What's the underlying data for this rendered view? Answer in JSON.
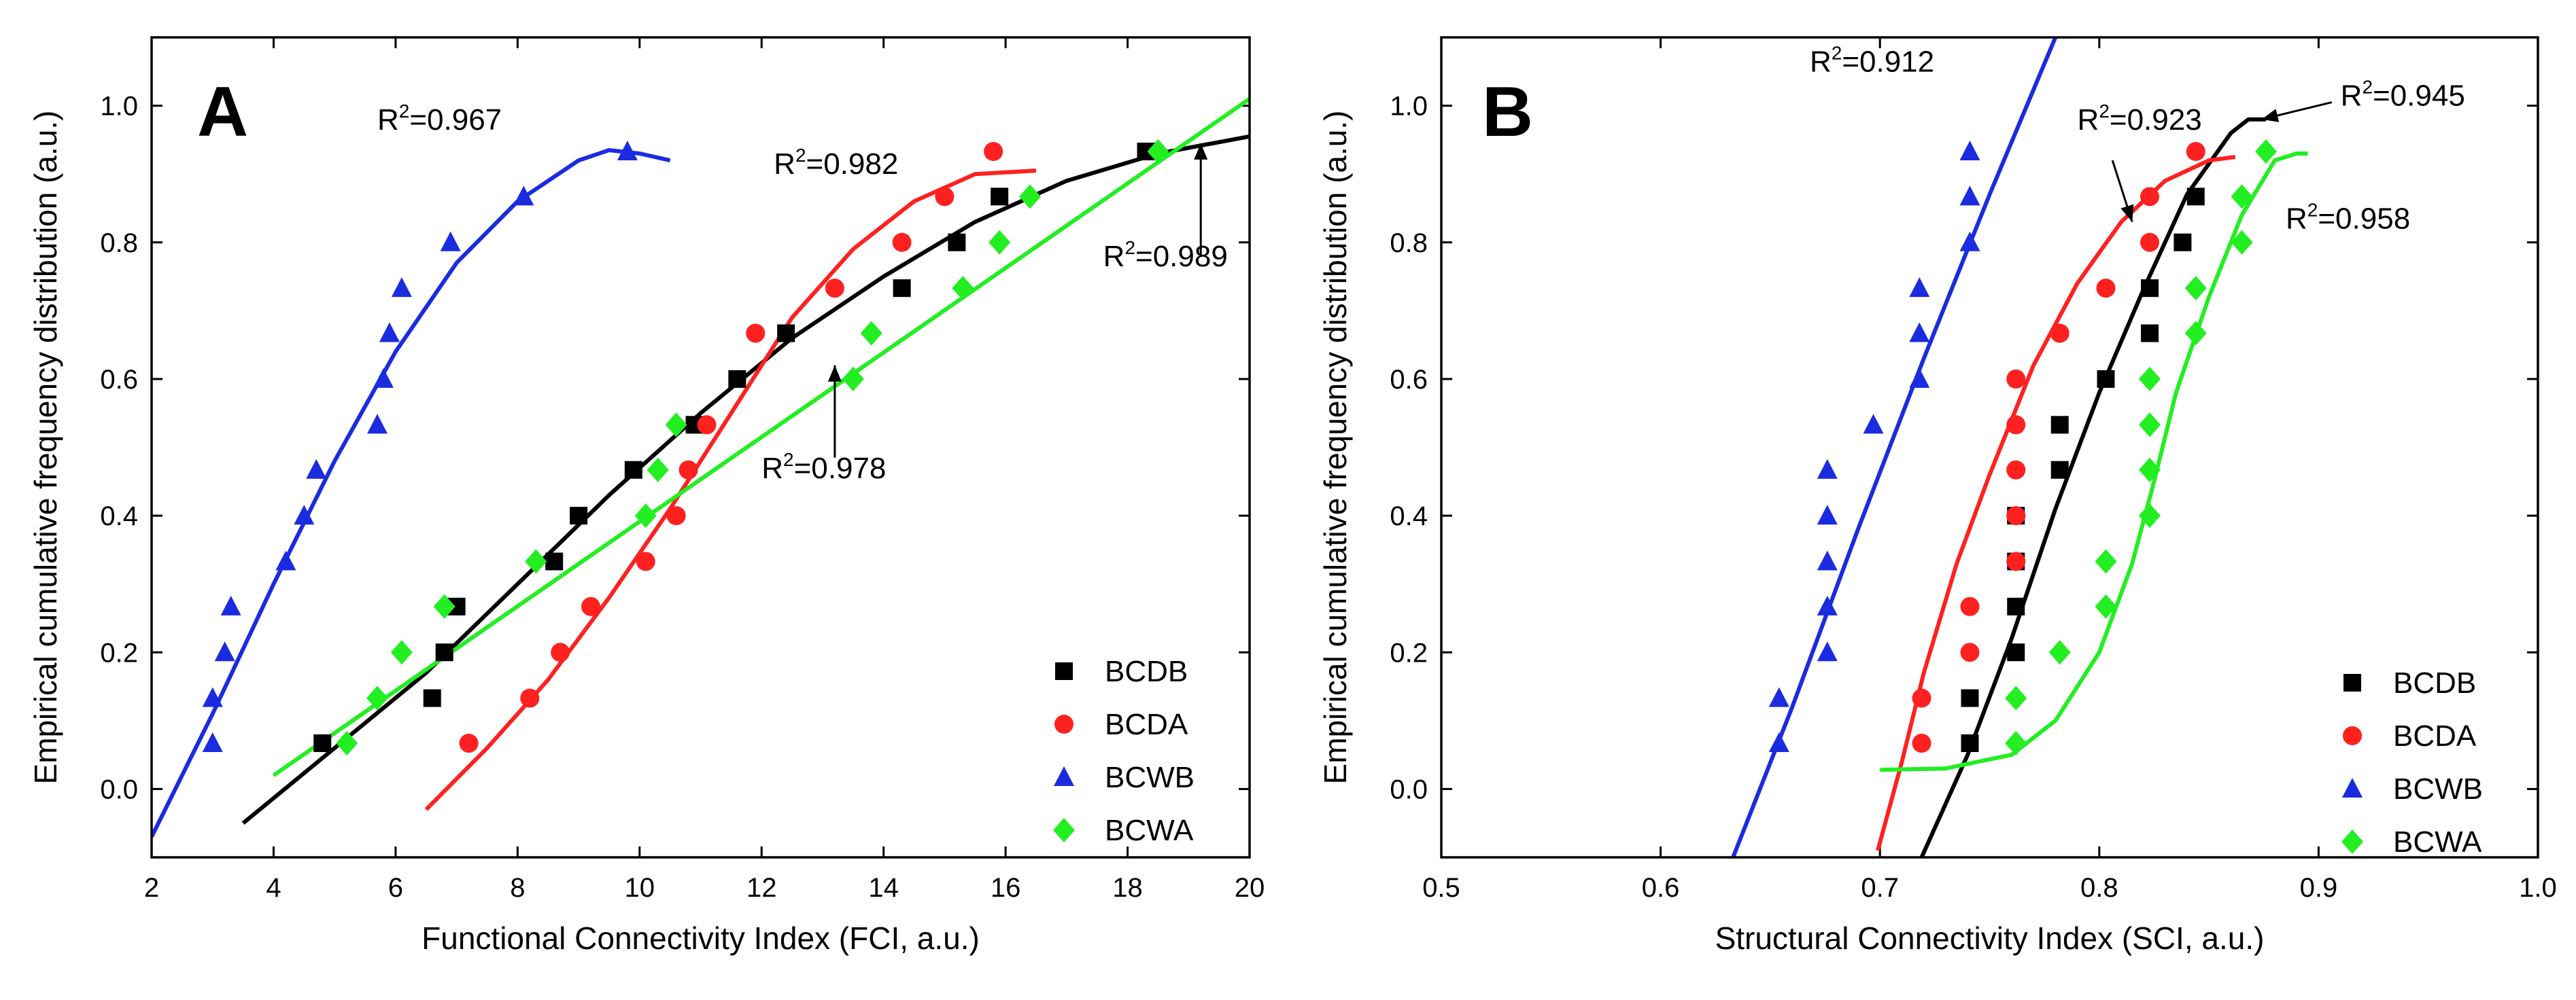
{
  "colors": {
    "BCDB": "#000000",
    "BCDA": "#ff2020",
    "BCWB": "#1b2be0",
    "BCWA": "#22ee22"
  },
  "chart_data": [
    {
      "panel": "A",
      "type": "scatter",
      "xlabel": "Functional Connectivity Index (FCI, a.u.)",
      "ylabel": "Empirical cumulative frequency distribution (a.u.)",
      "xlim": [
        2,
        20
      ],
      "ylim": [
        -0.1,
        1.1
      ],
      "xticks": [
        2,
        4,
        6,
        8,
        10,
        12,
        14,
        16,
        18,
        20
      ],
      "yticks": [
        0.0,
        0.2,
        0.4,
        0.6,
        0.8,
        1.0
      ],
      "legend_position": "bottom-right",
      "series": [
        {
          "name": "BCDB",
          "marker": "square",
          "points": [
            [
              4.8,
              0.067
            ],
            [
              6.6,
              0.133
            ],
            [
              6.8,
              0.2
            ],
            [
              7.0,
              0.267
            ],
            [
              8.6,
              0.333
            ],
            [
              9.0,
              0.4
            ],
            [
              9.9,
              0.467
            ],
            [
              10.9,
              0.533
            ],
            [
              11.6,
              0.6
            ],
            [
              12.4,
              0.667
            ],
            [
              14.3,
              0.733
            ],
            [
              15.2,
              0.8
            ],
            [
              15.9,
              0.867
            ],
            [
              18.3,
              0.933
            ]
          ],
          "fit": [
            [
              3.5,
              -0.05
            ],
            [
              5.0,
              0.06
            ],
            [
              6.5,
              0.17
            ],
            [
              8.0,
              0.3
            ],
            [
              9.5,
              0.43
            ],
            [
              11.0,
              0.55
            ],
            [
              12.5,
              0.66
            ],
            [
              14.0,
              0.75
            ],
            [
              15.5,
              0.83
            ],
            [
              17.0,
              0.89
            ],
            [
              18.5,
              0.93
            ],
            [
              20.0,
              0.955
            ]
          ]
        },
        {
          "name": "BCDA",
          "marker": "circle",
          "points": [
            [
              7.2,
              0.067
            ],
            [
              8.2,
              0.133
            ],
            [
              8.7,
              0.2
            ],
            [
              9.2,
              0.267
            ],
            [
              10.1,
              0.333
            ],
            [
              10.6,
              0.4
            ],
            [
              10.8,
              0.467
            ],
            [
              11.1,
              0.533
            ],
            [
              11.9,
              0.667
            ],
            [
              13.2,
              0.733
            ],
            [
              14.3,
              0.8
            ],
            [
              15.0,
              0.867
            ],
            [
              15.8,
              0.933
            ]
          ],
          "fit": [
            [
              6.5,
              -0.03
            ],
            [
              7.5,
              0.06
            ],
            [
              8.5,
              0.16
            ],
            [
              9.5,
              0.28
            ],
            [
              10.5,
              0.41
            ],
            [
              11.5,
              0.55
            ],
            [
              12.5,
              0.69
            ],
            [
              13.5,
              0.79
            ],
            [
              14.5,
              0.86
            ],
            [
              15.5,
              0.9
            ],
            [
              16.5,
              0.905
            ]
          ]
        },
        {
          "name": "BCWB",
          "marker": "triangle",
          "points": [
            [
              3.0,
              0.067
            ],
            [
              3.0,
              0.133
            ],
            [
              3.2,
              0.2
            ],
            [
              3.3,
              0.267
            ],
            [
              4.2,
              0.333
            ],
            [
              4.5,
              0.4
            ],
            [
              4.7,
              0.467
            ],
            [
              5.7,
              0.533
            ],
            [
              5.8,
              0.6
            ],
            [
              5.9,
              0.667
            ],
            [
              6.1,
              0.733
            ],
            [
              6.9,
              0.8
            ],
            [
              8.1,
              0.867
            ],
            [
              9.8,
              0.933
            ]
          ],
          "fit": [
            [
              2.0,
              -0.07
            ],
            [
              3.0,
              0.11
            ],
            [
              4.0,
              0.3
            ],
            [
              5.0,
              0.48
            ],
            [
              6.0,
              0.64
            ],
            [
              7.0,
              0.77
            ],
            [
              8.0,
              0.86
            ],
            [
              9.0,
              0.92
            ],
            [
              9.5,
              0.935
            ],
            [
              10.0,
              0.93
            ],
            [
              10.5,
              0.92
            ]
          ]
        },
        {
          "name": "BCWA",
          "marker": "diamond",
          "points": [
            [
              5.2,
              0.067
            ],
            [
              5.7,
              0.133
            ],
            [
              6.1,
              0.2
            ],
            [
              6.8,
              0.267
            ],
            [
              8.3,
              0.333
            ],
            [
              10.1,
              0.4
            ],
            [
              10.3,
              0.467
            ],
            [
              10.6,
              0.533
            ],
            [
              13.5,
              0.6
            ],
            [
              13.8,
              0.667
            ],
            [
              15.3,
              0.733
            ],
            [
              15.9,
              0.8
            ],
            [
              16.4,
              0.867
            ],
            [
              18.5,
              0.933
            ]
          ],
          "fit": [
            [
              4.0,
              0.02
            ],
            [
              20.0,
              1.01
            ]
          ]
        }
      ],
      "annotations": [
        {
          "text": "R",
          "sup": "2",
          "value": "=0.967",
          "x": 5.7,
          "y": 0.965
        },
        {
          "text": "R",
          "sup": "2",
          "value": "=0.982",
          "x": 12.2,
          "y": 0.9
        },
        {
          "text": "R",
          "sup": "2",
          "value": "=0.989",
          "x": 17.6,
          "y": 0.765
        },
        {
          "text": "R",
          "sup": "2",
          "value": "=0.978",
          "x": 12.0,
          "y": 0.455
        }
      ],
      "arrows": [
        {
          "from": [
            19.2,
            0.78
          ],
          "to": [
            19.2,
            0.945
          ]
        },
        {
          "from": [
            13.2,
            0.485
          ],
          "to": [
            13.2,
            0.62
          ]
        }
      ]
    },
    {
      "panel": "B",
      "type": "scatter",
      "xlabel": "Structural Connectivity Index (SCI, a.u.)",
      "ylabel": "Empirical cumulative frequency distribution (a.u.)",
      "xlim": [
        0.5,
        1.0
      ],
      "ylim": [
        -0.1,
        1.1
      ],
      "xticks": [
        0.5,
        0.6,
        0.7,
        0.8,
        0.9,
        1.0
      ],
      "xtick_labels": [
        "0.5",
        "0.6",
        "0.7",
        "0.8",
        "0.9",
        "1.0"
      ],
      "yticks": [
        0.0,
        0.2,
        0.4,
        0.6,
        0.8,
        1.0
      ],
      "legend_position": "bottom-right",
      "series": [
        {
          "name": "BCDB",
          "marker": "square",
          "points": [
            [
              0.741,
              0.067
            ],
            [
              0.741,
              0.133
            ],
            [
              0.762,
              0.2
            ],
            [
              0.762,
              0.267
            ],
            [
              0.762,
              0.333
            ],
            [
              0.762,
              0.4
            ],
            [
              0.782,
              0.467
            ],
            [
              0.782,
              0.533
            ],
            [
              0.803,
              0.6
            ],
            [
              0.823,
              0.667
            ],
            [
              0.823,
              0.733
            ],
            [
              0.838,
              0.8
            ],
            [
              0.844,
              0.867
            ]
          ],
          "fit": [
            [
              0.719,
              -0.1
            ],
            [
              0.74,
              0.05
            ],
            [
              0.76,
              0.22
            ],
            [
              0.78,
              0.41
            ],
            [
              0.8,
              0.58
            ],
            [
              0.82,
              0.73
            ],
            [
              0.84,
              0.87
            ],
            [
              0.86,
              0.96
            ],
            [
              0.868,
              0.98
            ],
            [
              0.876,
              0.98
            ]
          ]
        },
        {
          "name": "BCDA",
          "marker": "circle",
          "points": [
            [
              0.719,
              0.067
            ],
            [
              0.719,
              0.133
            ],
            [
              0.741,
              0.2
            ],
            [
              0.741,
              0.267
            ],
            [
              0.762,
              0.333
            ],
            [
              0.762,
              0.4
            ],
            [
              0.762,
              0.467
            ],
            [
              0.762,
              0.533
            ],
            [
              0.762,
              0.6
            ],
            [
              0.782,
              0.667
            ],
            [
              0.803,
              0.733
            ],
            [
              0.823,
              0.8
            ],
            [
              0.823,
              0.867
            ],
            [
              0.844,
              0.933
            ]
          ],
          "fit": [
            [
              0.699,
              -0.09
            ],
            [
              0.71,
              0.04
            ],
            [
              0.72,
              0.17
            ],
            [
              0.735,
              0.33
            ],
            [
              0.75,
              0.46
            ],
            [
              0.77,
              0.62
            ],
            [
              0.79,
              0.74
            ],
            [
              0.81,
              0.83
            ],
            [
              0.83,
              0.89
            ],
            [
              0.85,
              0.92
            ],
            [
              0.862,
              0.925
            ]
          ]
        },
        {
          "name": "BCWB",
          "marker": "triangle",
          "points": [
            [
              0.654,
              0.067
            ],
            [
              0.654,
              0.133
            ],
            [
              0.676,
              0.2
            ],
            [
              0.676,
              0.267
            ],
            [
              0.676,
              0.333
            ],
            [
              0.676,
              0.4
            ],
            [
              0.676,
              0.467
            ],
            [
              0.697,
              0.533
            ],
            [
              0.718,
              0.6
            ],
            [
              0.718,
              0.667
            ],
            [
              0.718,
              0.733
            ],
            [
              0.741,
              0.8
            ],
            [
              0.741,
              0.867
            ],
            [
              0.741,
              0.933
            ]
          ],
          "fit": [
            [
              0.633,
              -0.1
            ],
            [
              0.66,
              0.12
            ],
            [
              0.69,
              0.38
            ],
            [
              0.72,
              0.63
            ],
            [
              0.75,
              0.87
            ],
            [
              0.78,
              1.1
            ]
          ]
        },
        {
          "name": "BCWA",
          "marker": "diamond",
          "points": [
            [
              0.762,
              0.067
            ],
            [
              0.762,
              0.133
            ],
            [
              0.782,
              0.2
            ],
            [
              0.803,
              0.267
            ],
            [
              0.803,
              0.333
            ],
            [
              0.823,
              0.4
            ],
            [
              0.823,
              0.467
            ],
            [
              0.823,
              0.533
            ],
            [
              0.823,
              0.6
            ],
            [
              0.844,
              0.667
            ],
            [
              0.844,
              0.733
            ],
            [
              0.865,
              0.8
            ],
            [
              0.865,
              0.867
            ],
            [
              0.876,
              0.933
            ]
          ],
          "fit": [
            [
              0.7,
              0.028
            ],
            [
              0.73,
              0.03
            ],
            [
              0.76,
              0.05
            ],
            [
              0.78,
              0.1
            ],
            [
              0.8,
              0.2
            ],
            [
              0.815,
              0.33
            ],
            [
              0.825,
              0.45
            ],
            [
              0.835,
              0.58
            ],
            [
              0.85,
              0.72
            ],
            [
              0.865,
              0.84
            ],
            [
              0.88,
              0.92
            ],
            [
              0.89,
              0.93
            ],
            [
              0.895,
              0.93
            ]
          ]
        }
      ],
      "annotations": [
        {
          "text": "R",
          "sup": "2",
          "value": "=0.912",
          "x": 0.668,
          "y": 1.05
        },
        {
          "text": "R",
          "sup": "2",
          "value": "=0.923",
          "x": 0.79,
          "y": 0.965
        },
        {
          "text": "R",
          "sup": "2",
          "value": "=0.945",
          "x": 0.91,
          "y": 1.0
        },
        {
          "text": "R",
          "sup": "2",
          "value": "=0.958",
          "x": 0.885,
          "y": 0.82
        }
      ],
      "arrows": [
        {
          "from": [
            0.806,
            0.92
          ],
          "to": [
            0.815,
            0.83
          ]
        },
        {
          "from": [
            0.906,
            1.005
          ],
          "to": [
            0.874,
            0.98
          ]
        }
      ]
    }
  ]
}
